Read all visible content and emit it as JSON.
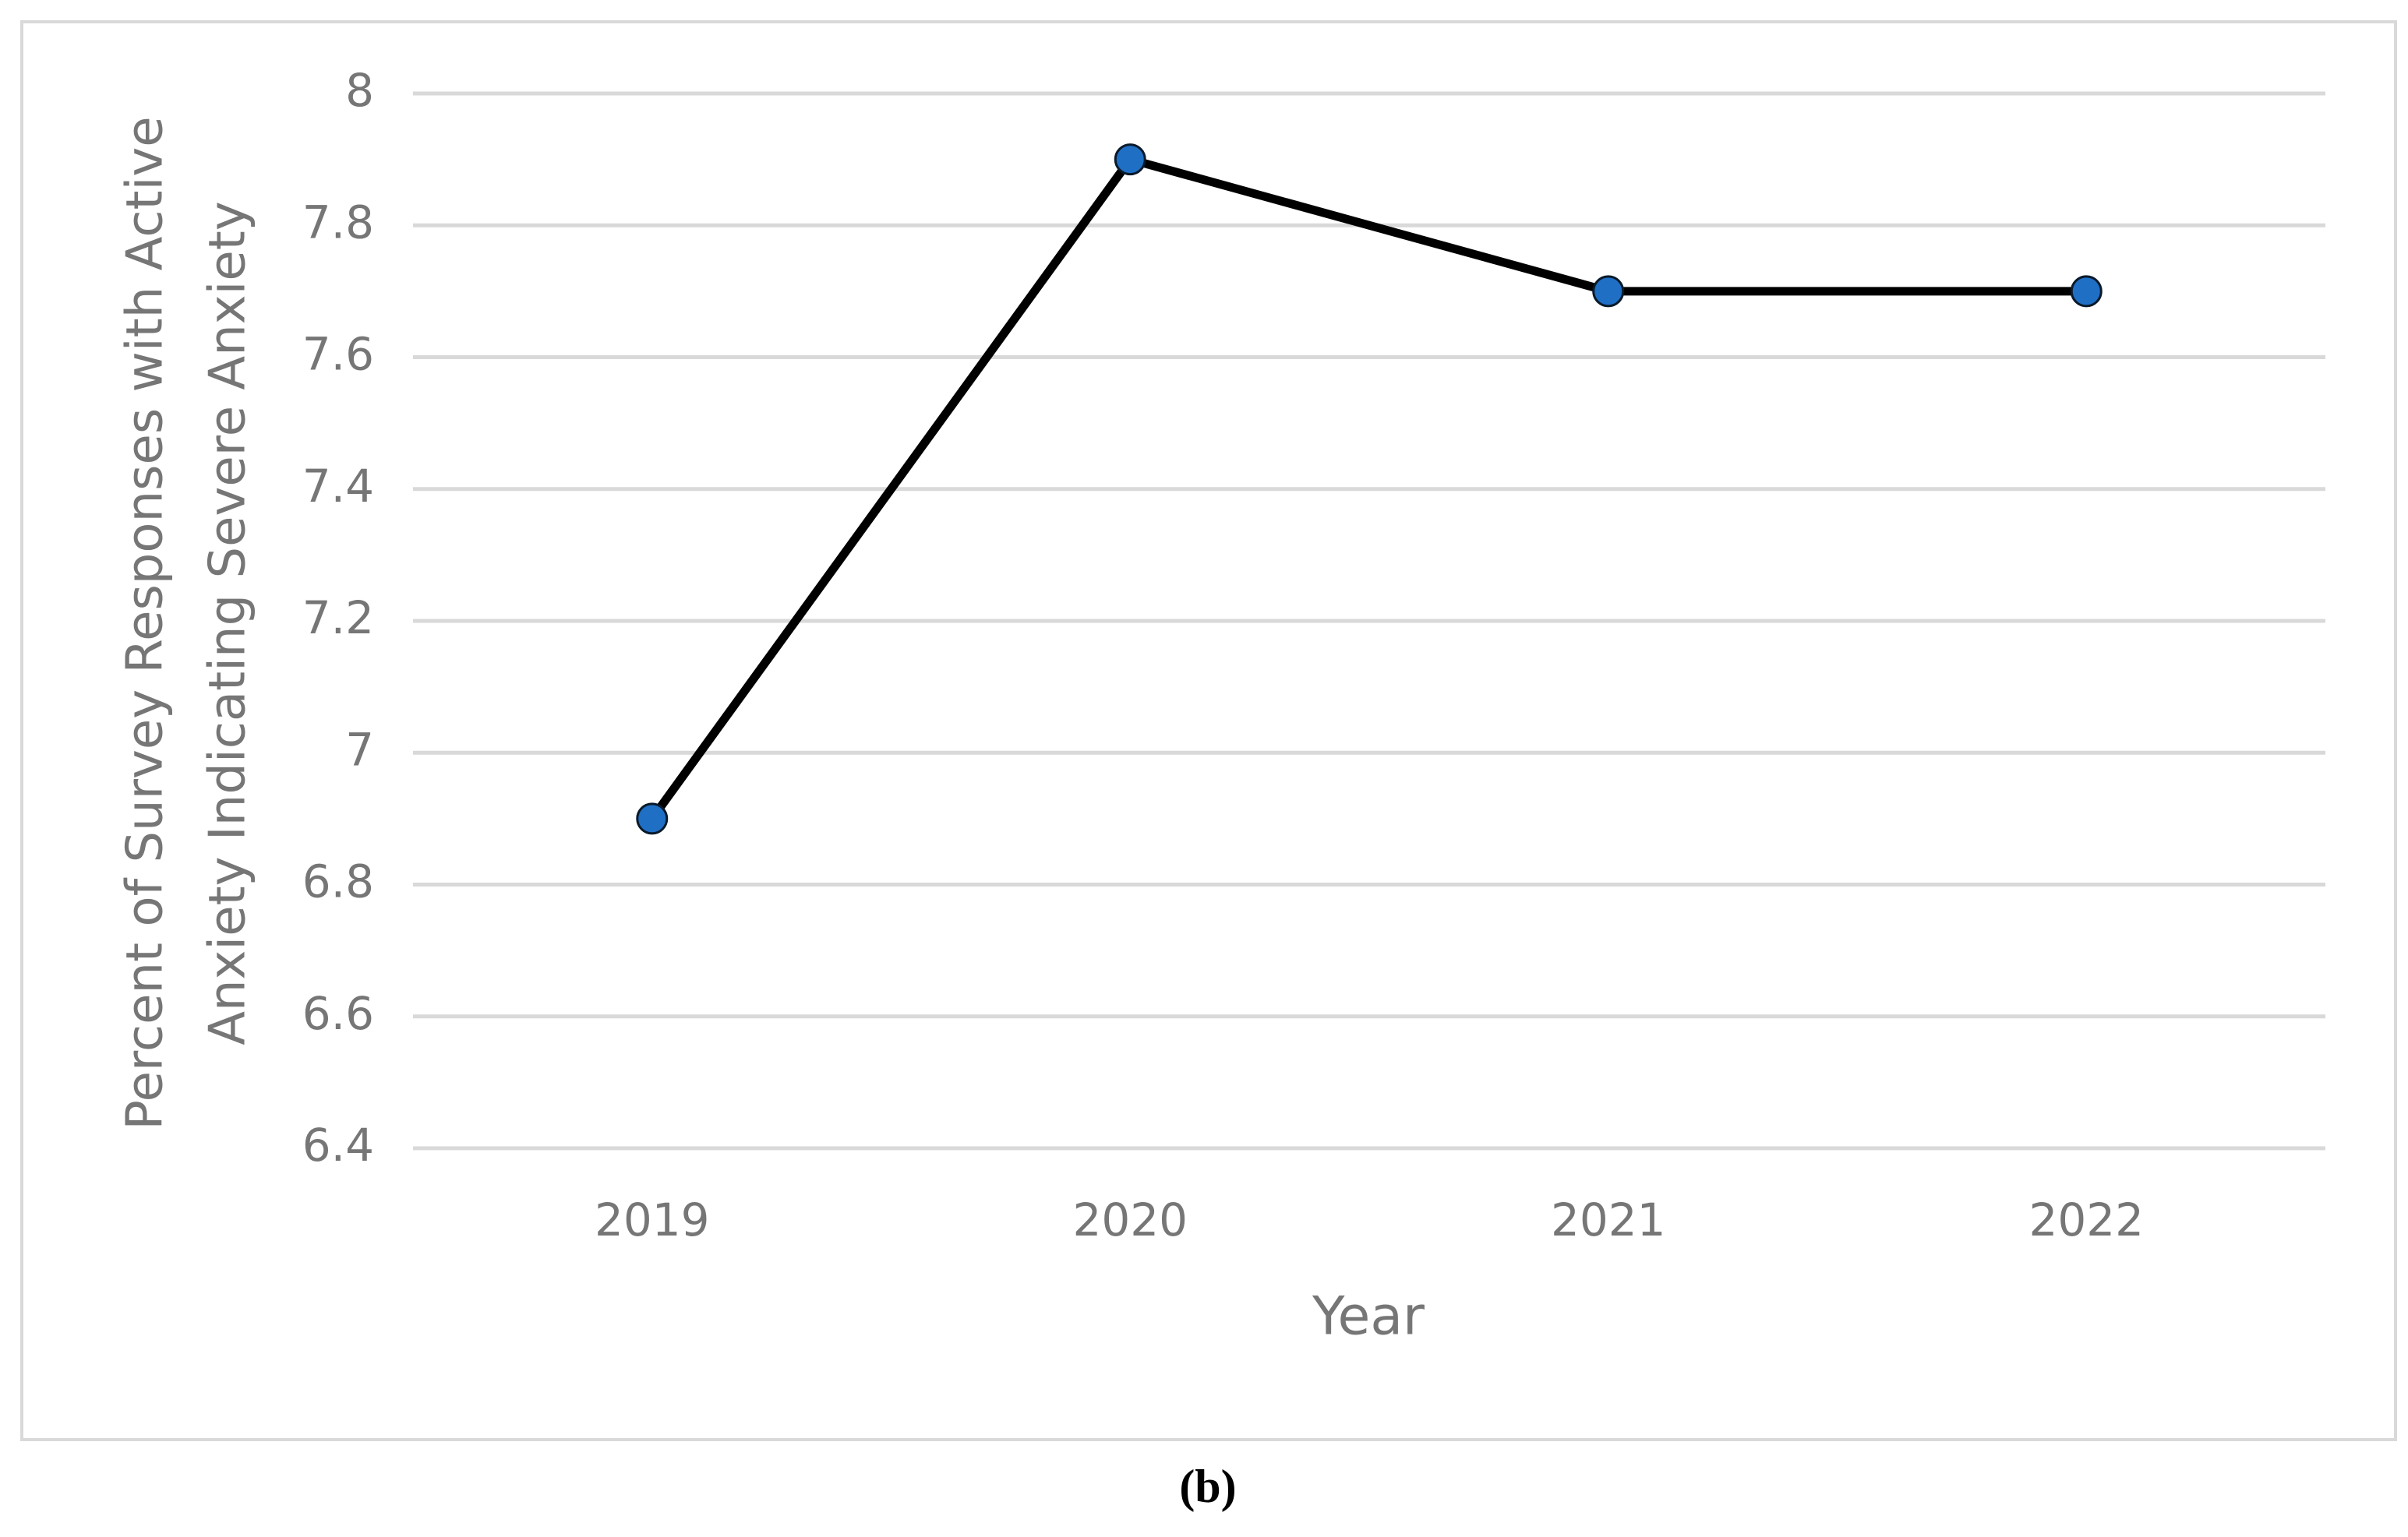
{
  "chart_data": {
    "type": "line",
    "ylabel": [
      "Percent of Survey Responses with Active",
      "Anxiety Indicating Severe Anxiety"
    ],
    "xlabel": "Year",
    "caption": "(b)",
    "categories": [
      "2019",
      "2020",
      "2021",
      "2022"
    ],
    "values": [
      6.9,
      7.9,
      7.7,
      7.7
    ],
    "color": "#1f6fc5",
    "line_color": "#000000",
    "ylim": [
      6.4,
      8
    ],
    "yticks": [
      6.4,
      6.6,
      6.8,
      7,
      7.2,
      7.4,
      7.6,
      7.8,
      8
    ],
    "grid": true
  }
}
